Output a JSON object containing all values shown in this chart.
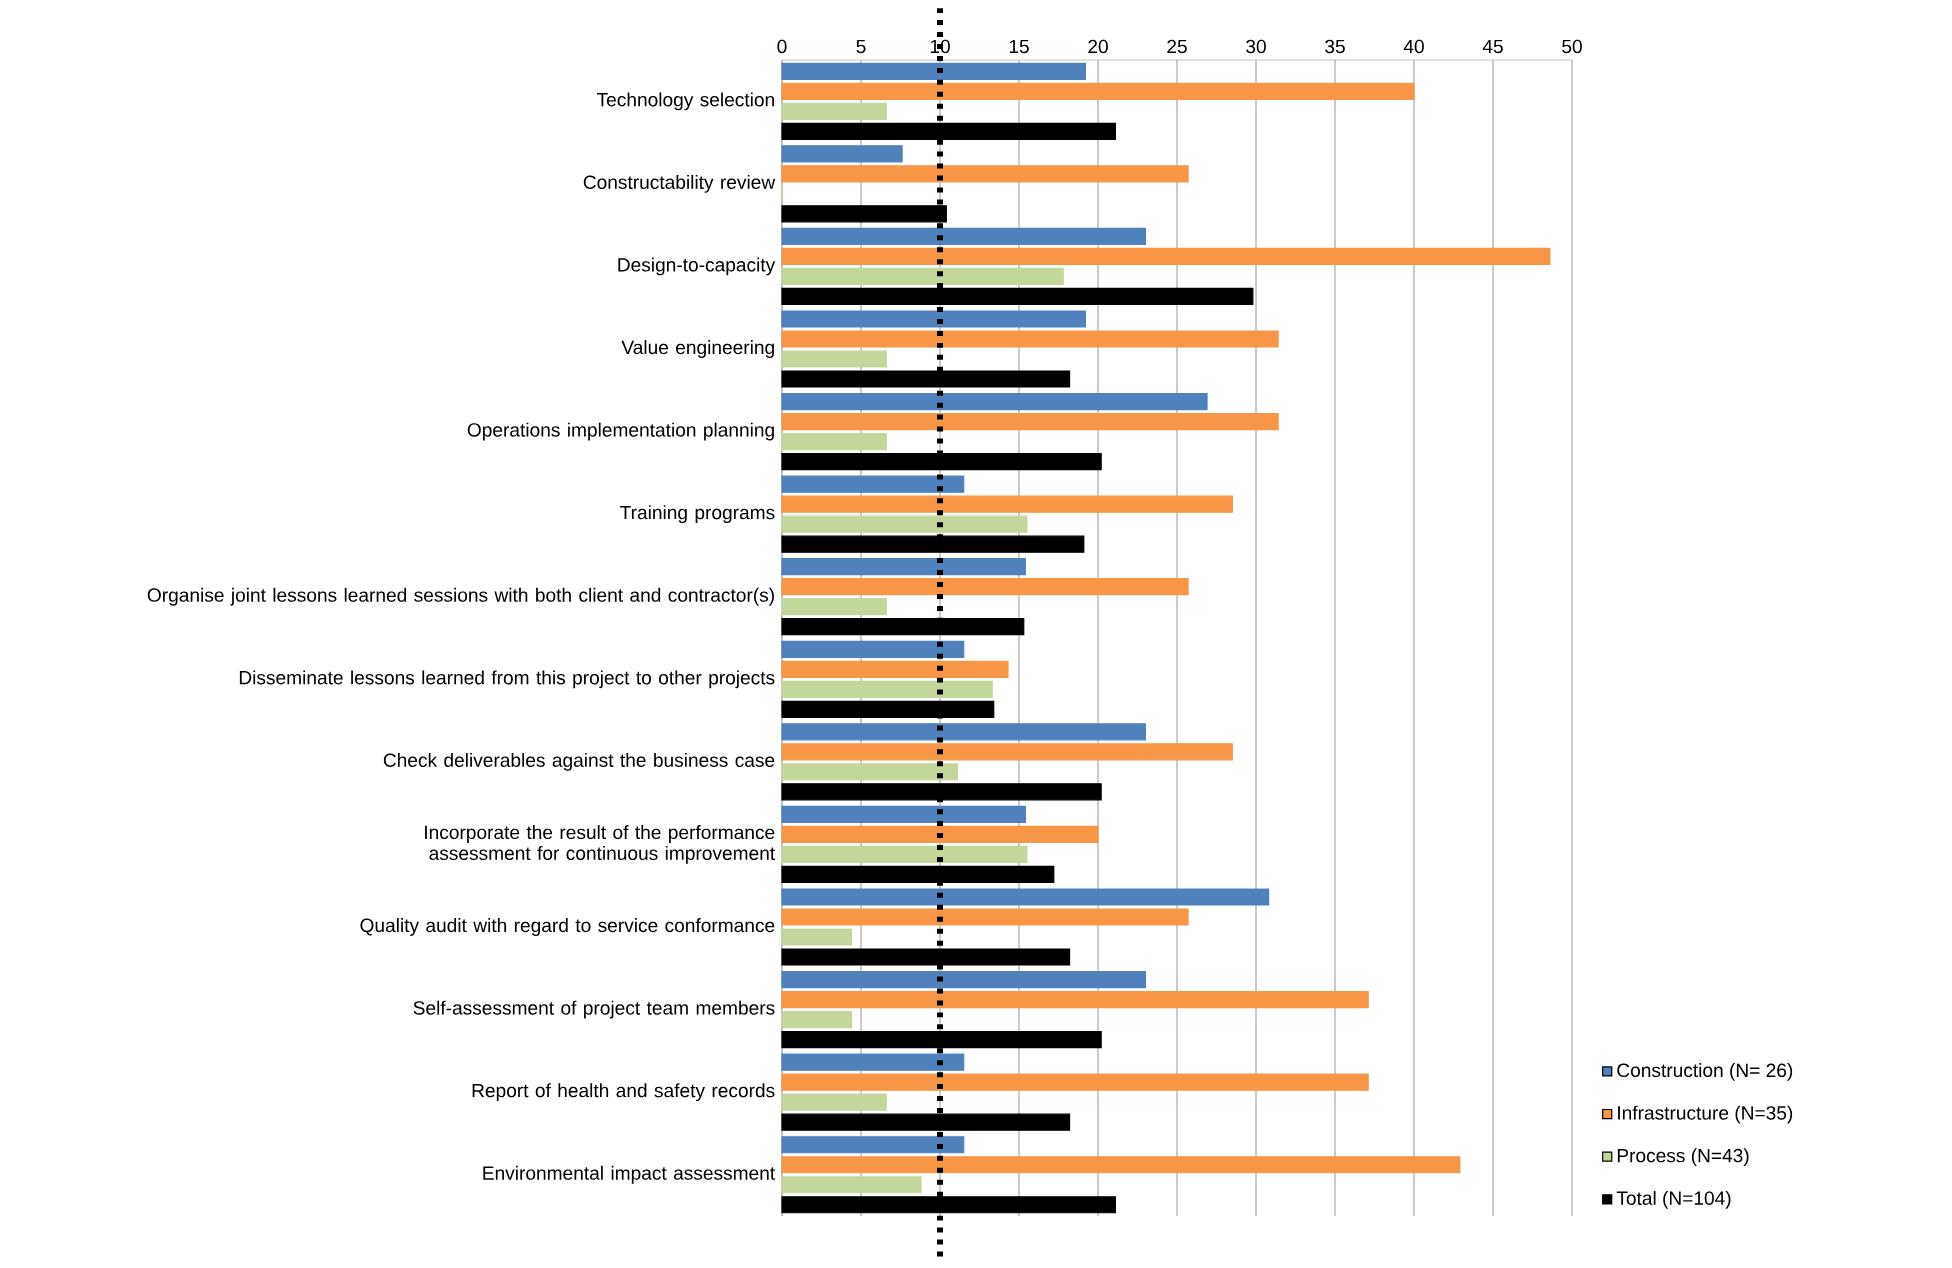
{
  "chart_data": {
    "type": "bar",
    "orientation": "horizontal",
    "categories": [
      "Technology selection",
      "Constructability review",
      "Design-to-capacity",
      "Value engineering",
      "Operations implementation planning",
      "Training programs",
      "Organise joint lessons learned sessions with both client and contractor(s)",
      "Disseminate lessons learned from this project to other projects",
      "Check deliverables against the business case",
      "Incorporate the result of the performance assessment for continuous improvement",
      "Quality audit with regard to service conformance",
      "Self-assessment of project team members",
      "Report of health and safety records",
      "Environmental impact assessment"
    ],
    "series": [
      {
        "name": "Construction (N= 26)",
        "color": "#4f81bd",
        "values": [
          19.2,
          7.6,
          23.0,
          19.2,
          26.9,
          11.5,
          15.4,
          11.5,
          23.0,
          15.4,
          30.8,
          23.0,
          11.5,
          11.5
        ]
      },
      {
        "name": "Infrastructure (N=35)",
        "color": "#f79646",
        "values": [
          40.0,
          25.7,
          48.6,
          31.4,
          31.4,
          28.5,
          25.7,
          14.3,
          28.5,
          20.0,
          25.7,
          37.1,
          37.1,
          42.9
        ]
      },
      {
        "name": "Process (N=43)",
        "color": "#c4d79b",
        "values": [
          6.6,
          0,
          17.8,
          6.6,
          6.6,
          15.5,
          6.6,
          13.3,
          11.1,
          15.5,
          4.4,
          4.4,
          6.6,
          8.8
        ]
      },
      {
        "name": "Total (N=104)",
        "color": "#000000",
        "values": [
          21.1,
          10.4,
          29.8,
          18.2,
          20.2,
          19.1,
          15.3,
          13.4,
          20.2,
          17.2,
          18.2,
          20.2,
          18.2,
          21.1
        ]
      }
    ],
    "xlim": [
      0,
      50
    ],
    "xticks": [
      0,
      5,
      10,
      15,
      20,
      25,
      30,
      35,
      40,
      45,
      50
    ],
    "grid": "x",
    "legend": "bottom right",
    "ref_lines": [
      {
        "axis": "x",
        "value": 10,
        "line_style": "dotted",
        "color": "#000000"
      }
    ]
  }
}
